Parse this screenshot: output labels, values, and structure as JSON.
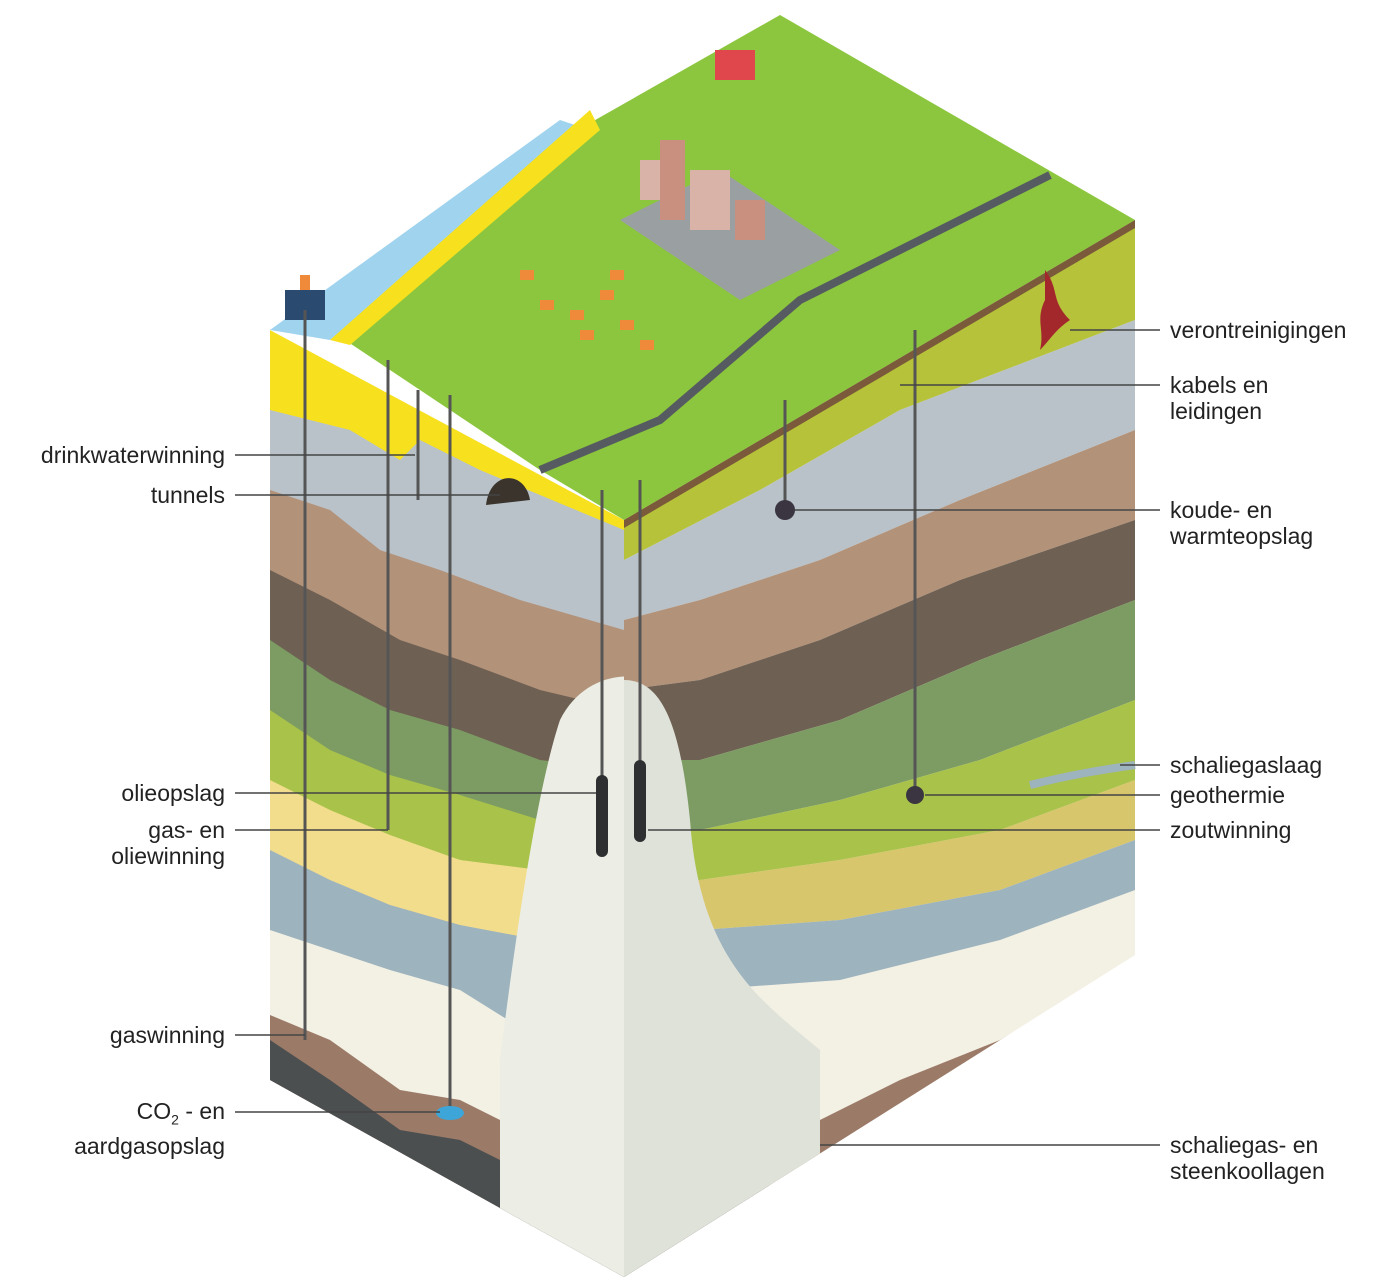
{
  "labels_left": {
    "drinkwater": "drinkwaterwinning",
    "tunnels": "tunnels",
    "olieopslag": "olieopslag",
    "gasolie_1": "gas- en",
    "gasolie_2": "oliewinning",
    "gaswinning": "gaswinning",
    "co2_a": "CO",
    "co2_sub": "2",
    "co2_b": " - en",
    "co2_2": "aardgasopslag"
  },
  "labels_right": {
    "verontreinigingen": "verontreinigingen",
    "kabels_1": "kabels en",
    "kabels_2": "leidingen",
    "koude_1": "koude- en",
    "koude_2": "warmteopslag",
    "schaliegaslaag": "schaliegaslaag",
    "geothermie": "geothermie",
    "zoutwinning": "zoutwinning",
    "steenkool_1": "schaliegas- en",
    "steenkool_2": "steenkoollagen"
  },
  "colors": {
    "grass": "#8cc63e",
    "sand_yellow": "#f7e11e",
    "clay_grey": "#b9c2c8",
    "brown": "#b3927a",
    "dark_brown": "#6e6052",
    "green_layer": "#7d9c63",
    "lime_layer": "#a8c24a",
    "light_yellow": "#f2dd8c",
    "blue_grey": "#9db3be",
    "salt_dome": "#eceee6",
    "coal_dark": "#4b4f50",
    "sea": "#9fd3ee"
  }
}
